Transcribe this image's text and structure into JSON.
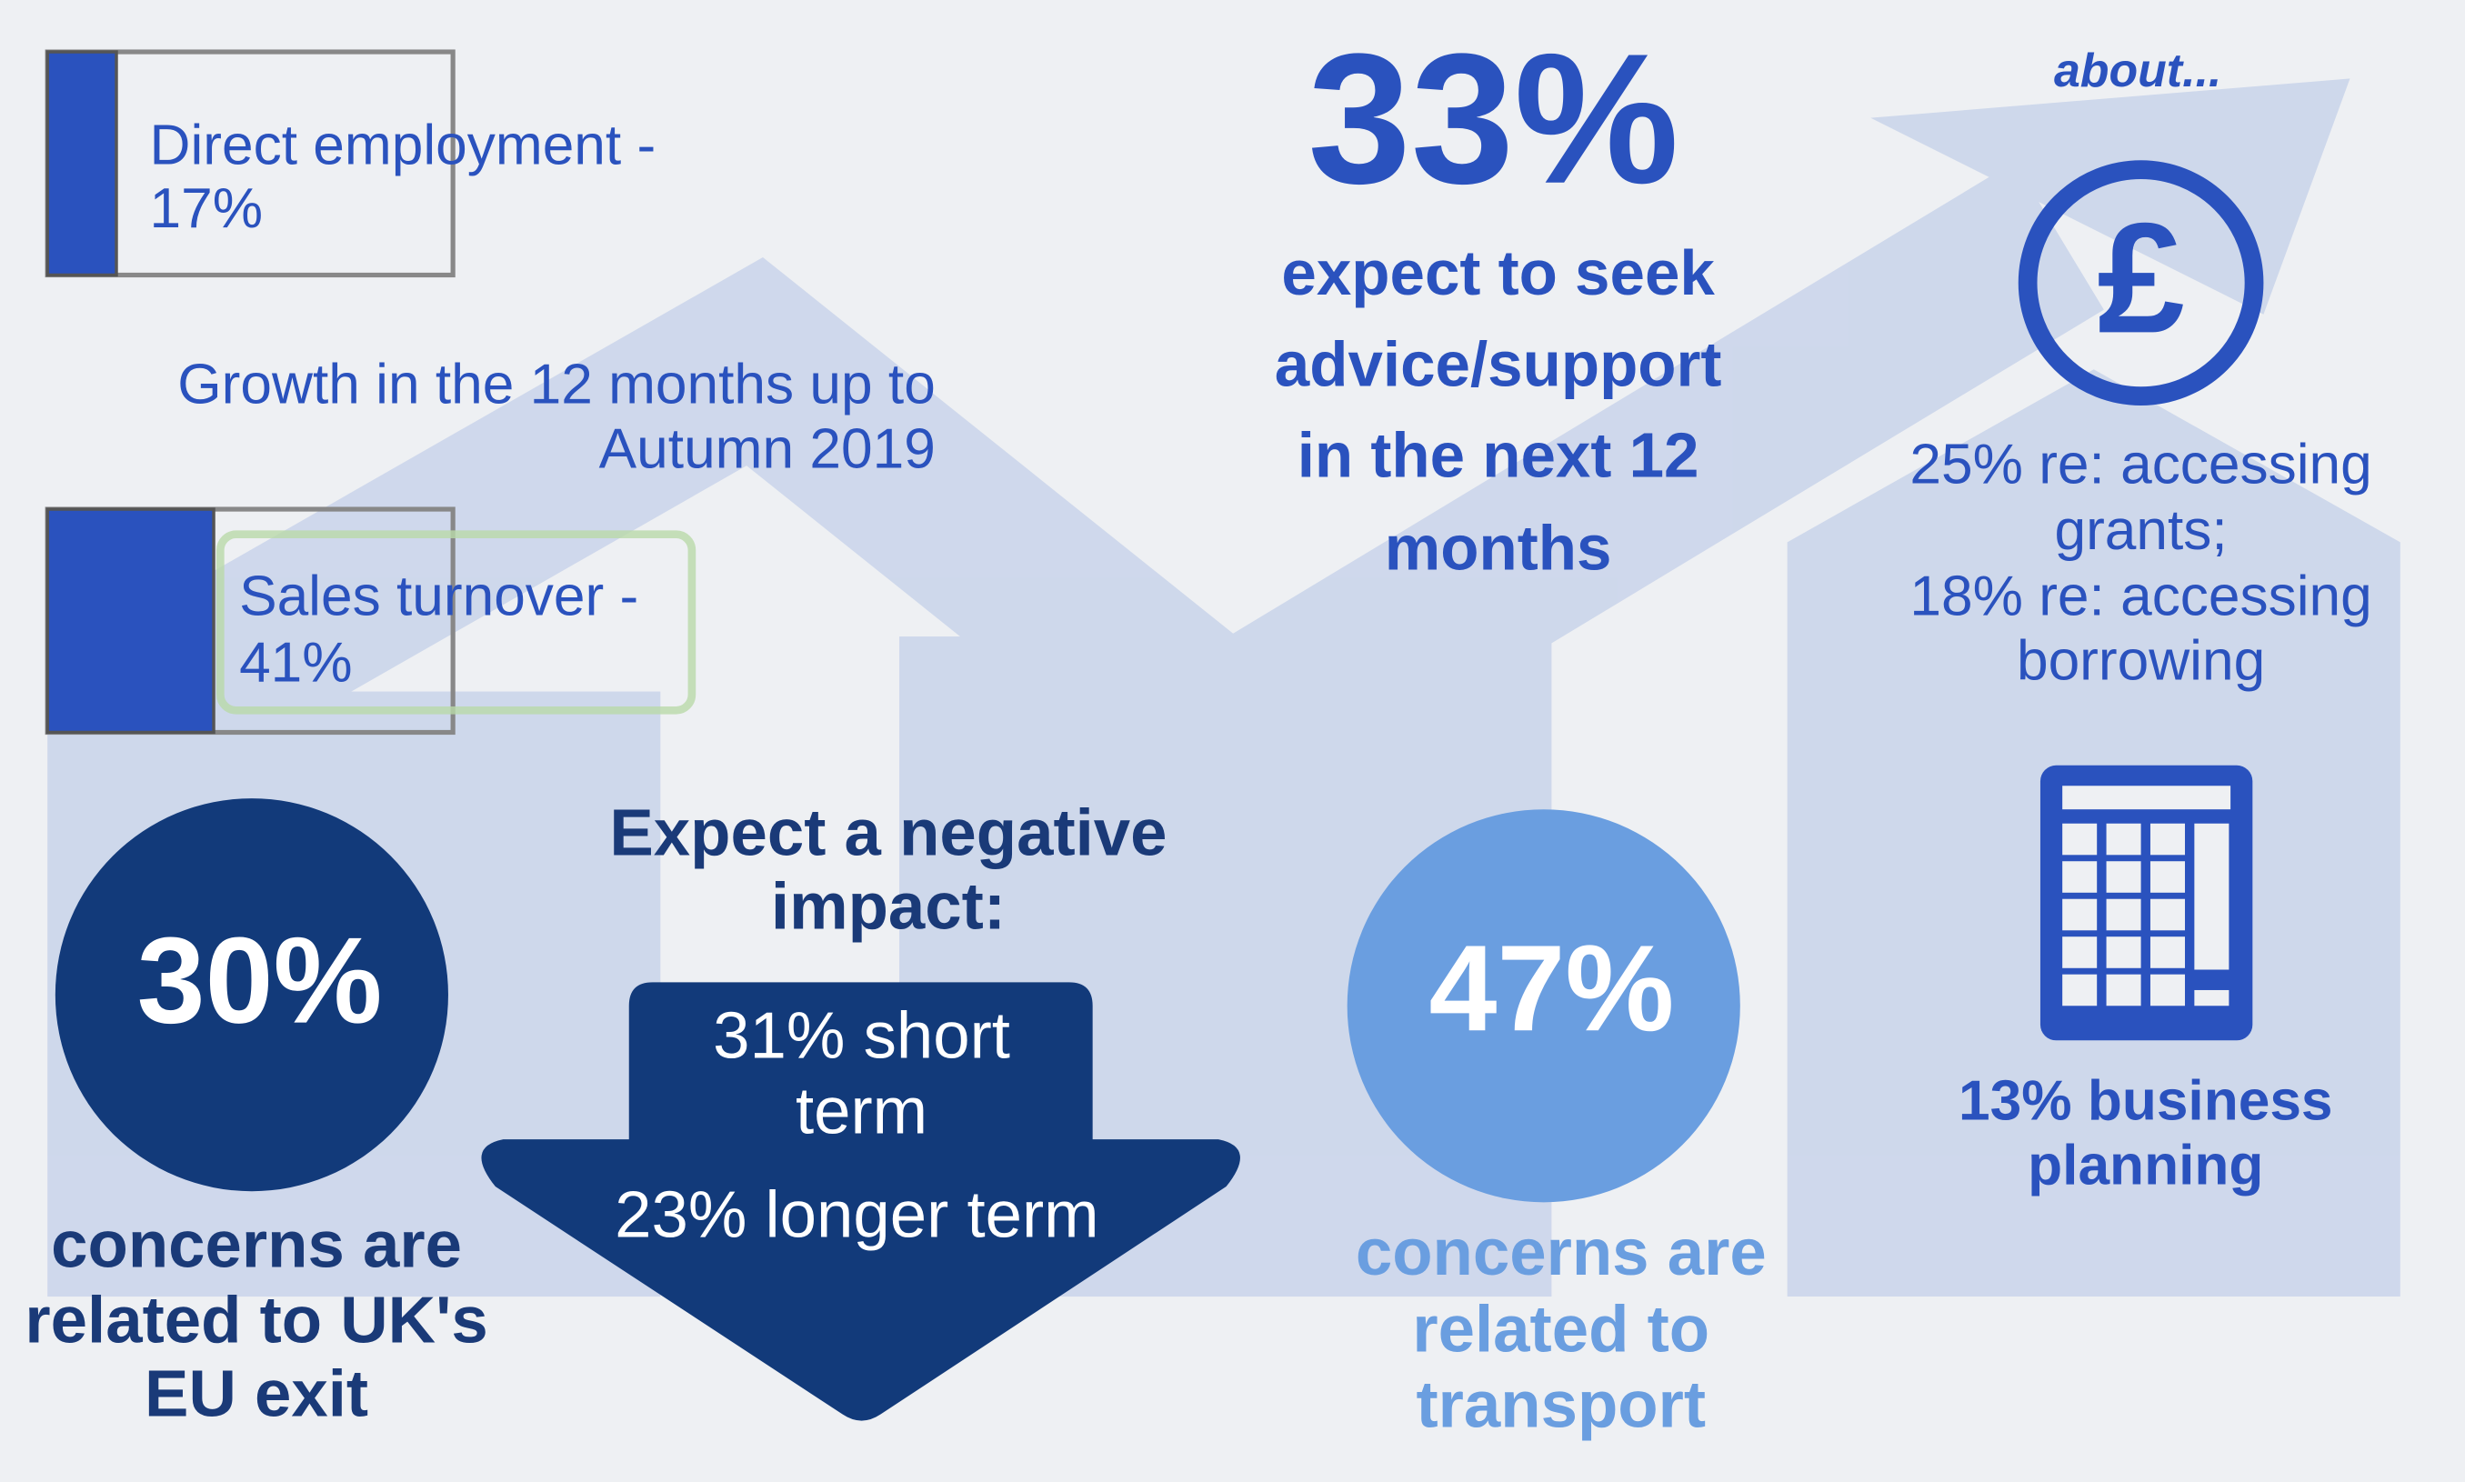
{
  "growth": {
    "title_lines": [
      "Growth in the 12 months up to",
      "Autumn 2019"
    ],
    "items": [
      {
        "name": "Direct employment -",
        "value": 17,
        "value_label": "17%"
      },
      {
        "name": "Sales turnover -",
        "value": 41,
        "value_label": "41%"
      }
    ]
  },
  "eu_exit": {
    "figure": "30%",
    "lines": [
      "concerns are",
      "related to UK's",
      "EU exit"
    ]
  },
  "negative_impact": {
    "title_lines": [
      "Expect a negative",
      "impact:"
    ],
    "arrow_lines": [
      "31% short",
      "term",
      "23% longer term"
    ]
  },
  "advice": {
    "figure": "33%",
    "lines": [
      "expect to seek",
      "advice/support",
      "in the next 12",
      "months"
    ]
  },
  "about": {
    "heading": "about...",
    "finance_lines": [
      "25% re: accessing",
      "grants;",
      "18% re: accessing",
      "borrowing"
    ],
    "planning_lines": [
      "13% business",
      "planning"
    ]
  },
  "transport": {
    "figure": "47%",
    "lines": [
      "concerns are",
      "related to",
      "transport"
    ]
  }
}
